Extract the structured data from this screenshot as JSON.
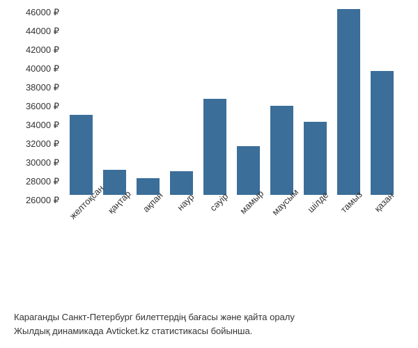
{
  "chart": {
    "type": "bar",
    "categories": [
      "желтоқсан",
      "қаңтар",
      "ақпан",
      "наур",
      "сәуір",
      "мамыр",
      "маусым",
      "шілде",
      "тамыз",
      "қазан"
    ],
    "values": [
      34500,
      28700,
      27800,
      28500,
      36200,
      31200,
      35500,
      33800,
      45800,
      39200
    ],
    "bar_color": "#3b6e99",
    "background_color": "#ffffff",
    "y_min": 26000,
    "y_max": 46000,
    "y_ticks": [
      26000,
      28000,
      30000,
      32000,
      34000,
      36000,
      38000,
      40000,
      42000,
      44000,
      46000
    ],
    "currency_symbol": "₽",
    "tick_fontsize": 13,
    "tick_color": "#333333",
    "x_label_rotation": -45
  },
  "caption": {
    "line1": "Караганды Санкт-Петербург билеттердің бағасы және қайта оралу",
    "line2": "Жылдық динамикада Avticket.kz статистикасы бойынша.",
    "fontsize": 13,
    "color": "#333333"
  }
}
